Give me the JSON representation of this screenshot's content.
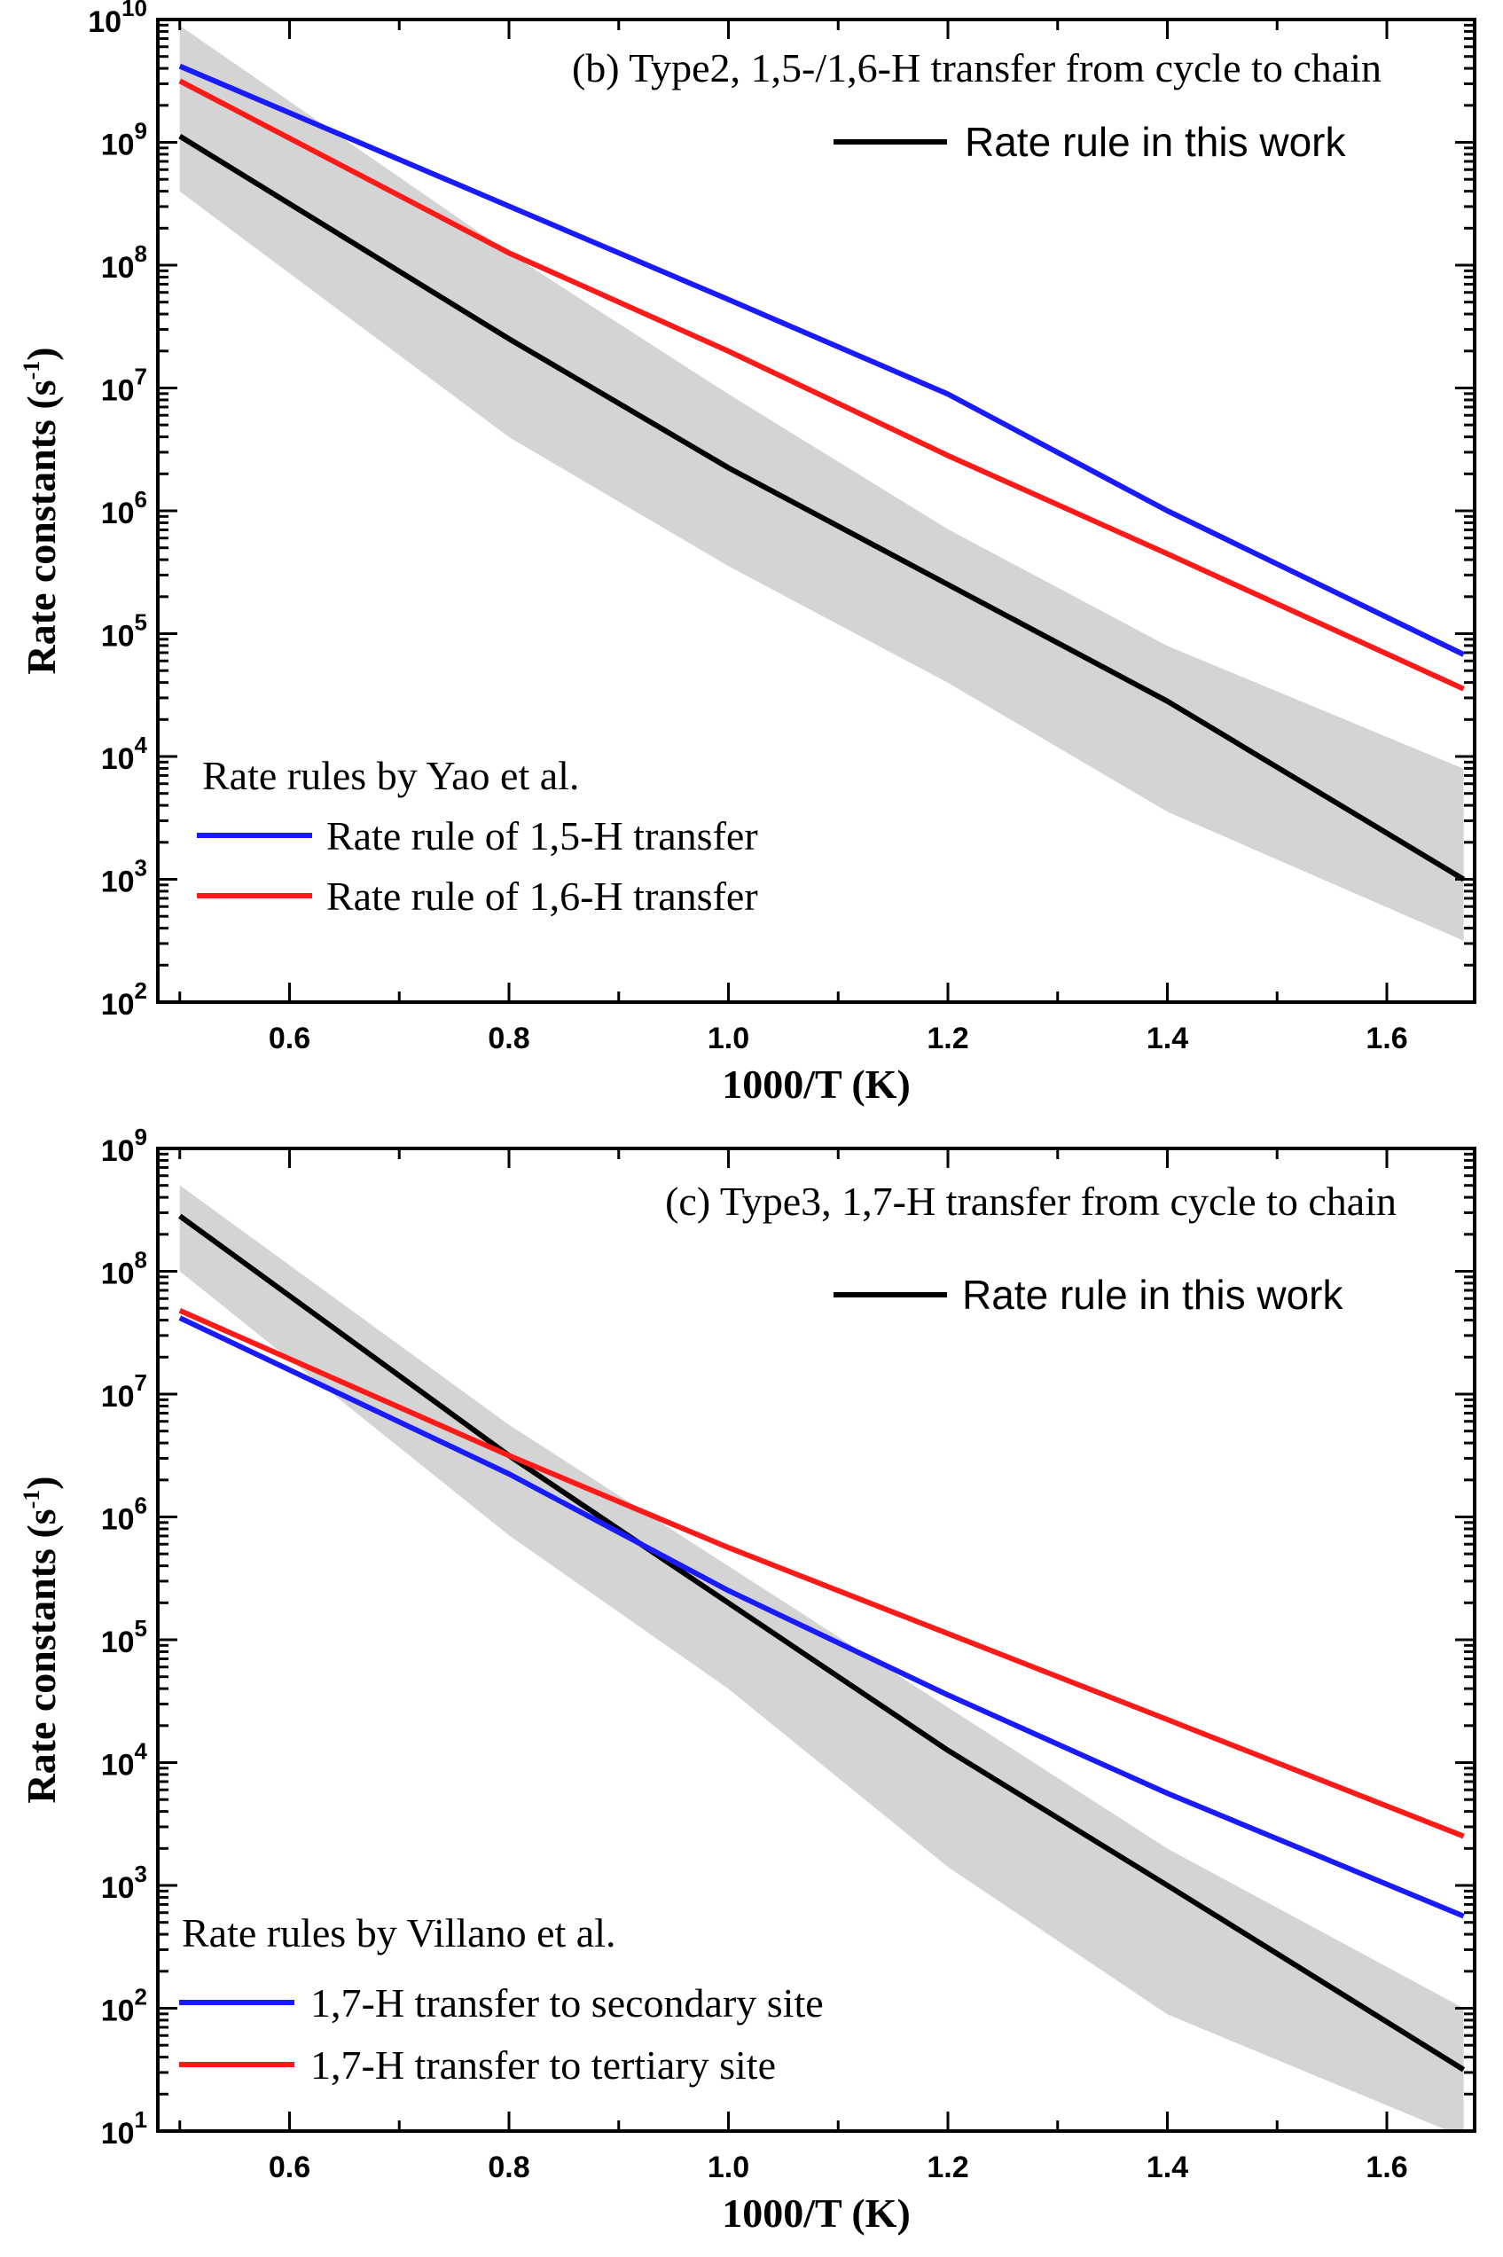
{
  "chart_data": [
    {
      "type": "line",
      "title": "(b) Type2, 1,5-/1,6-H transfer from cycle to chain",
      "xlabel": "1000/T (K)",
      "ylabel_main": "Rate constants (s",
      "ylabel_sup": "-1",
      "ylabel_close": ")",
      "xlim": [
        0.48,
        1.68
      ],
      "ylim_log10": [
        2,
        10
      ],
      "yscale": "log",
      "x_ticks": [
        "0.6",
        "0.8",
        "1.0",
        "1.2",
        "1.4",
        "1.6"
      ],
      "x_tick_values": [
        0.6,
        0.8,
        1.0,
        1.2,
        1.4,
        1.6
      ],
      "y_ticks": [
        {
          "base": "10",
          "exp": "2",
          "value": 2
        },
        {
          "base": "10",
          "exp": "3",
          "value": 3
        },
        {
          "base": "10",
          "exp": "4",
          "value": 4
        },
        {
          "base": "10",
          "exp": "5",
          "value": 5
        },
        {
          "base": "10",
          "exp": "6",
          "value": 6
        },
        {
          "base": "10",
          "exp": "7",
          "value": 7
        },
        {
          "base": "10",
          "exp": "8",
          "value": 8
        },
        {
          "base": "10",
          "exp": "9",
          "value": 9
        },
        {
          "base": "10",
          "exp": "10",
          "value": 10
        }
      ],
      "band": {
        "color": "#d4d4d4",
        "x": [
          0.5,
          0.8,
          1.0,
          1.2,
          1.4,
          1.67
        ],
        "upper_log10": [
          9.95,
          8.1,
          6.95,
          5.85,
          4.9,
          3.9
        ],
        "lower_log10": [
          8.6,
          6.6,
          5.55,
          4.6,
          3.55,
          2.5
        ]
      },
      "series": [
        {
          "name": "Rate rule in this work",
          "color": "#000000",
          "x": [
            0.5,
            0.8,
            1.0,
            1.2,
            1.4,
            1.67
          ],
          "log10_y": [
            9.05,
            7.4,
            6.35,
            5.4,
            4.45,
            3.0
          ]
        },
        {
          "name": "Rate rule of 1,5-H transfer",
          "color": "#1a1aff",
          "x": [
            0.5,
            0.8,
            1.0,
            1.2,
            1.4,
            1.67
          ],
          "log10_y": [
            9.62,
            8.48,
            7.72,
            6.95,
            6.0,
            4.83
          ]
        },
        {
          "name": "Rate rule of 1,6-H transfer",
          "color": "#ff1a1a",
          "x": [
            0.5,
            0.8,
            1.0,
            1.2,
            1.4,
            1.67
          ],
          "log10_y": [
            9.5,
            8.1,
            7.3,
            6.45,
            5.65,
            4.55
          ]
        }
      ],
      "legend_top_entries": [
        "Rate rule in this work"
      ],
      "legend_bottom_title": "Rate rules by Yao et al.",
      "legend_bottom_entries": [
        "Rate rule of 1,5-H transfer",
        "Rate rule of 1,6-H transfer"
      ]
    },
    {
      "type": "line",
      "title": "(c) Type3, 1,7-H transfer from cycle to chain",
      "xlabel": "1000/T (K)",
      "ylabel_main": "Rate constants (s",
      "ylabel_sup": "-1",
      "ylabel_close": ")",
      "xlim": [
        0.48,
        1.68
      ],
      "ylim_log10": [
        1,
        9
      ],
      "yscale": "log",
      "x_ticks": [
        "0.6",
        "0.8",
        "1.0",
        "1.2",
        "1.4",
        "1.6"
      ],
      "x_tick_values": [
        0.6,
        0.8,
        1.0,
        1.2,
        1.4,
        1.6
      ],
      "y_ticks": [
        {
          "base": "10",
          "exp": "1",
          "value": 1
        },
        {
          "base": "10",
          "exp": "2",
          "value": 2
        },
        {
          "base": "10",
          "exp": "3",
          "value": 3
        },
        {
          "base": "10",
          "exp": "4",
          "value": 4
        },
        {
          "base": "10",
          "exp": "5",
          "value": 5
        },
        {
          "base": "10",
          "exp": "6",
          "value": 6
        },
        {
          "base": "10",
          "exp": "7",
          "value": 7
        },
        {
          "base": "10",
          "exp": "8",
          "value": 8
        },
        {
          "base": "10",
          "exp": "9",
          "value": 9
        }
      ],
      "band": {
        "color": "#d4d4d4",
        "x": [
          0.5,
          0.8,
          1.0,
          1.2,
          1.4,
          1.67
        ],
        "upper_log10": [
          8.7,
          6.75,
          5.6,
          4.45,
          3.3,
          2.0
        ],
        "lower_log10": [
          8.0,
          5.85,
          4.6,
          3.15,
          1.95,
          0.95
        ]
      },
      "series": [
        {
          "name": "Rate rule in this work",
          "color": "#000000",
          "x": [
            0.5,
            0.8,
            1.0,
            1.2,
            1.4,
            1.67
          ],
          "log10_y": [
            8.45,
            6.5,
            5.3,
            4.1,
            3.0,
            1.5
          ]
        },
        {
          "name": "1,7-H transfer to secondary site",
          "color": "#1a1aff",
          "x": [
            0.5,
            0.8,
            1.0,
            1.2,
            1.4,
            1.67
          ],
          "log10_y": [
            7.62,
            6.35,
            5.4,
            4.55,
            3.75,
            2.75
          ]
        },
        {
          "name": "1,7-H transfer to tertiary site",
          "color": "#ff1a1a",
          "x": [
            0.5,
            0.8,
            1.0,
            1.2,
            1.4,
            1.67
          ],
          "log10_y": [
            7.68,
            6.5,
            5.75,
            5.05,
            4.35,
            3.4
          ]
        }
      ],
      "legend_top_entries": [
        "Rate rule in this work"
      ],
      "legend_bottom_title": "Rate rules by Villano et al.",
      "legend_bottom_entries": [
        "1,7-H transfer to secondary site",
        "1,7-H transfer to tertiary site"
      ]
    }
  ]
}
